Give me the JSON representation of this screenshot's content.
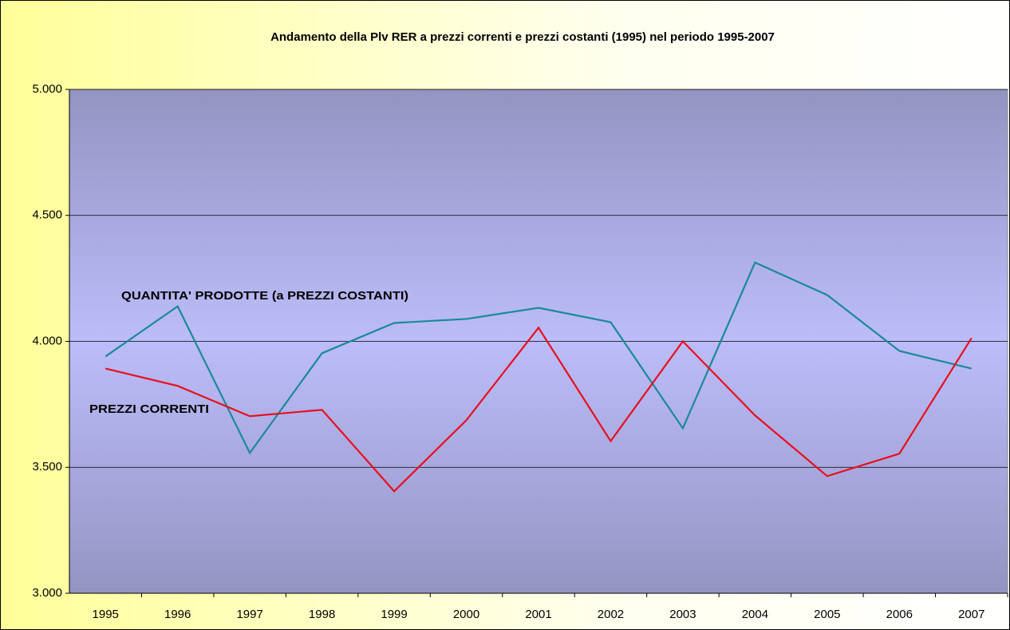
{
  "chart_data": {
    "type": "line",
    "title": "Andamento della Plv RER a prezzi correnti e prezzi costanti (1995) nel periodo 1995-2007",
    "categories": [
      "1995",
      "1996",
      "1997",
      "1998",
      "1999",
      "2000",
      "2001",
      "2002",
      "2003",
      "2004",
      "2005",
      "2006",
      "2007"
    ],
    "series": [
      {
        "name": "QUANTITA' PRODOTTE (a PREZZI COSTANTI)",
        "color": "#1a8a96",
        "values": [
          3940,
          4139,
          3557,
          3953,
          4073,
          4089,
          4133,
          4076,
          3655,
          4313,
          4184,
          3962,
          3892
        ]
      },
      {
        "name": "PREZZI CORRENTI",
        "color": "#e8101c",
        "values": [
          3892,
          3823,
          3703,
          3728,
          3405,
          3687,
          4054,
          3604,
          4000,
          3706,
          3465,
          3554,
          4013
        ]
      }
    ],
    "ylim": [
      3000,
      5000
    ],
    "yticks": [
      {
        "value": 3000,
        "label": "3.000"
      },
      {
        "value": 3500,
        "label": "3.500"
      },
      {
        "value": 4000,
        "label": "4.000"
      },
      {
        "value": 4500,
        "label": "4.500"
      },
      {
        "value": 5000,
        "label": "5.000"
      }
    ],
    "grid": true
  }
}
